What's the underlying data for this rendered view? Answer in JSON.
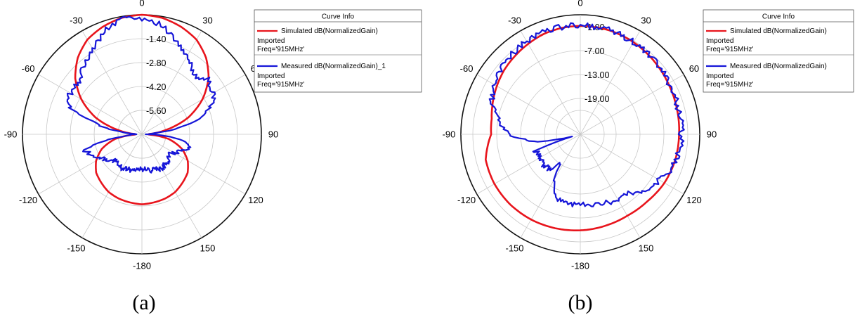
{
  "chart_data": [
    {
      "type": "polar-line",
      "caption": "(a)",
      "angle_ticks": [
        "0",
        "30",
        "60",
        "90",
        "120",
        "150",
        "-180",
        "-150",
        "-120",
        "-90",
        "-60",
        "-30"
      ],
      "angle_tick_degrees": [
        0,
        30,
        60,
        90,
        120,
        150,
        180,
        210,
        240,
        270,
        300,
        330
      ],
      "radial_range": [
        -7.0,
        0.0
      ],
      "radial_ticks": [
        -1.4,
        -2.8,
        -4.2,
        -5.6
      ],
      "radial_tick_labels": [
        "-1.40",
        "-2.80",
        "-4.20",
        "-5.60"
      ],
      "grid": true,
      "legend": {
        "placement": "right",
        "title": "Curve Info",
        "entries": [
          {
            "label": "Simulated dB(NormalizedGain)",
            "sub1": "Imported",
            "sub2": "Freq='915MHz'",
            "color": "#e8141c"
          },
          {
            "label": "Measured dB(NormalizedGain)_1",
            "sub1": "Imported",
            "sub2": "Freq='915MHz'",
            "color": "#1616d8"
          }
        ]
      },
      "series": [
        {
          "name": "Simulated dB(NormalizedGain)",
          "color": "#e8141c",
          "theta": [
            0,
            10,
            20,
            30,
            40,
            50,
            60,
            70,
            80,
            88,
            92,
            100,
            110,
            120,
            130,
            140,
            150,
            160,
            170,
            180,
            190,
            200,
            210,
            220,
            230,
            240,
            250,
            260,
            268,
            272,
            280,
            290,
            300,
            310,
            320,
            330,
            340,
            350
          ],
          "r": [
            0.0,
            -0.08,
            -0.3,
            -0.6,
            -1.15,
            -1.9,
            -2.9,
            -4.1,
            -5.6,
            -6.6,
            -6.6,
            -5.4,
            -4.5,
            -3.9,
            -3.5,
            -3.3,
            -3.1,
            -3.0,
            -2.95,
            -2.9,
            -2.95,
            -3.0,
            -3.1,
            -3.3,
            -3.5,
            -3.9,
            -4.5,
            -5.4,
            -6.6,
            -6.6,
            -5.6,
            -4.1,
            -2.9,
            -1.9,
            -1.15,
            -0.6,
            -0.3,
            -0.08
          ]
        },
        {
          "name": "Measured dB(NormalizedGain)_1",
          "color": "#1616d8",
          "theta": [
            0,
            5,
            10,
            15,
            20,
            25,
            30,
            35,
            40,
            45,
            50,
            55,
            60,
            65,
            70,
            75,
            80,
            85,
            90,
            95,
            100,
            105,
            110,
            115,
            120,
            125,
            130,
            140,
            150,
            160,
            170,
            180,
            190,
            200,
            210,
            220,
            230,
            235,
            240,
            245,
            250,
            255,
            260,
            265,
            270,
            275,
            280,
            285,
            290,
            295,
            300,
            305,
            310,
            315,
            320,
            325,
            330,
            335,
            340,
            345,
            350,
            355
          ],
          "r": [
            -0.2,
            -0.3,
            -0.5,
            -0.9,
            -1.2,
            -1.5,
            -1.8,
            -2.0,
            -2.3,
            -2.3,
            -2.0,
            -2.1,
            -2.2,
            -2.4,
            -2.9,
            -3.5,
            -4.8,
            -6.2,
            -6.7,
            -5.2,
            -4.4,
            -4.1,
            -4.3,
            -4.6,
            -4.8,
            -5.0,
            -4.9,
            -4.8,
            -4.7,
            -4.8,
            -4.9,
            -5.0,
            -4.9,
            -4.8,
            -4.7,
            -4.8,
            -4.7,
            -4.4,
            -4.3,
            -3.9,
            -3.7,
            -3.5,
            -4.8,
            -6.2,
            -6.7,
            -6.2,
            -4.8,
            -3.9,
            -2.6,
            -2.1,
            -2.2,
            -2.1,
            -2.3,
            -2.0,
            -1.7,
            -1.5,
            -1.3,
            -1.0,
            -0.5,
            -0.3,
            -0.2,
            -0.1
          ]
        }
      ]
    },
    {
      "type": "polar-line",
      "caption": "(b)",
      "angle_ticks": [
        "0",
        "30",
        "60",
        "90",
        "120",
        "150",
        "-180",
        "-150",
        "-120",
        "-90",
        "-60",
        "-30"
      ],
      "angle_tick_degrees": [
        0,
        30,
        60,
        90,
        120,
        150,
        180,
        210,
        240,
        270,
        300,
        330
      ],
      "radial_range": [
        -28.0,
        2.0
      ],
      "radial_ticks": [
        -1.0,
        -7.0,
        -13.0,
        -19.0
      ],
      "radial_tick_labels": [
        "-1.00",
        "-7.00",
        "-13.00",
        "-19.00"
      ],
      "grid": true,
      "legend": {
        "placement": "right",
        "title": "Curve Info",
        "entries": [
          {
            "label": "Simulated dB(NormalizedGain)",
            "sub1": "Imported",
            "sub2": "Freq='915MHz'",
            "color": "#e8141c"
          },
          {
            "label": "Measured dB(NormalizedGain)",
            "sub1": "Imported",
            "sub2": "Freq='915MHz'",
            "color": "#1616d8"
          }
        ]
      },
      "series": [
        {
          "name": "Simulated dB(NormalizedGain)",
          "color": "#e8141c",
          "theta": [
            0,
            15,
            30,
            45,
            60,
            75,
            90,
            105,
            120,
            135,
            150,
            165,
            180,
            195,
            210,
            225,
            240,
            255,
            270,
            280,
            290,
            300,
            310,
            320,
            330,
            340,
            350
          ],
          "r": [
            -0.8,
            -0.9,
            -1.3,
            -1.9,
            -2.5,
            -2.9,
            -3.2,
            -3.3,
            -3.6,
            -4.2,
            -4.4,
            -4.2,
            -3.9,
            -3.6,
            -3.3,
            -3.1,
            -3.1,
            -3.4,
            -5.6,
            -5.4,
            -4.6,
            -3.8,
            -3.0,
            -2.4,
            -1.8,
            -1.2,
            -0.9
          ]
        },
        {
          "name": "Measured dB(NormalizedGain)",
          "color": "#1616d8",
          "theta": [
            0,
            10,
            20,
            30,
            40,
            50,
            60,
            70,
            80,
            90,
            100,
            110,
            120,
            130,
            140,
            150,
            160,
            170,
            180,
            190,
            200,
            210,
            215,
            220,
            230,
            240,
            250,
            255,
            260,
            270,
            280,
            290,
            300,
            310,
            320,
            330,
            340,
            350
          ],
          "r": [
            -0.6,
            -0.8,
            -1.0,
            -1.3,
            -1.7,
            -2.0,
            -2.2,
            -2.5,
            -2.5,
            -2.6,
            -2.9,
            -3.6,
            -5.0,
            -6.6,
            -8.6,
            -9.4,
            -9.5,
            -10.1,
            -10.5,
            -10.5,
            -10.9,
            -15.0,
            -19.5,
            -16.5,
            -16.0,
            -16.5,
            -16.0,
            -26.5,
            -17.0,
            -10.3,
            -7.0,
            -4.4,
            -2.9,
            -2.0,
            -1.5,
            -1.0,
            -0.8,
            -0.7
          ]
        }
      ]
    }
  ]
}
